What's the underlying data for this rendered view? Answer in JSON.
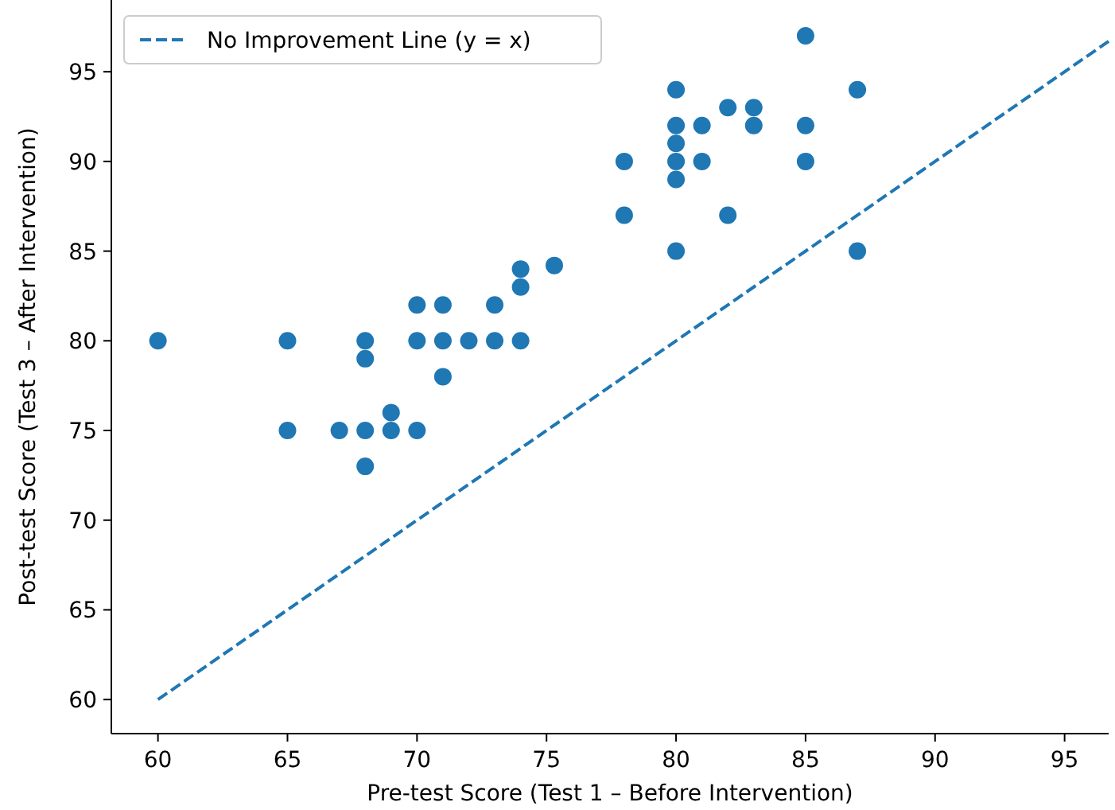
{
  "chart_data": {
    "type": "scatter",
    "xlabel": "Pre-test Score (Test 1 – Before Intervention)",
    "ylabel": "Post-test Score (Test 3 – After Intervention)",
    "xlim": [
      58.2,
      96.7
    ],
    "ylim": [
      58.1,
      99
    ],
    "xticks": [
      60,
      65,
      70,
      75,
      80,
      85,
      90,
      95
    ],
    "yticks": [
      60,
      65,
      70,
      75,
      80,
      85,
      90,
      95
    ],
    "grid": false,
    "legend": "top left",
    "series": [
      {
        "marker": "circle",
        "color": "#1f77b4",
        "x": [
          60,
          65,
          65,
          67,
          68,
          68,
          68,
          68,
          69,
          69,
          70,
          70,
          70,
          71,
          71,
          71,
          72,
          73,
          73,
          74,
          74,
          74,
          75.3,
          78,
          78,
          80,
          80,
          80,
          80,
          80,
          80,
          81,
          81,
          82,
          82,
          83,
          83,
          85,
          85,
          85,
          87,
          87
        ],
        "values": [
          80,
          80,
          75,
          75,
          80,
          79,
          75,
          73,
          76,
          75,
          82,
          80,
          75,
          82,
          80,
          78,
          80,
          82,
          80,
          84,
          83,
          80,
          84.2,
          90,
          87,
          94,
          92,
          91,
          90,
          89,
          85,
          92,
          90,
          93,
          87,
          93,
          92,
          97,
          92,
          90,
          94,
          85
        ]
      },
      {
        "type": "line",
        "name": "No Improvement Line (y = x)",
        "color": "#1f77b4",
        "line_style": "dashed",
        "x": [
          60,
          96.7
        ],
        "values": [
          60,
          96.7
        ]
      }
    ]
  }
}
